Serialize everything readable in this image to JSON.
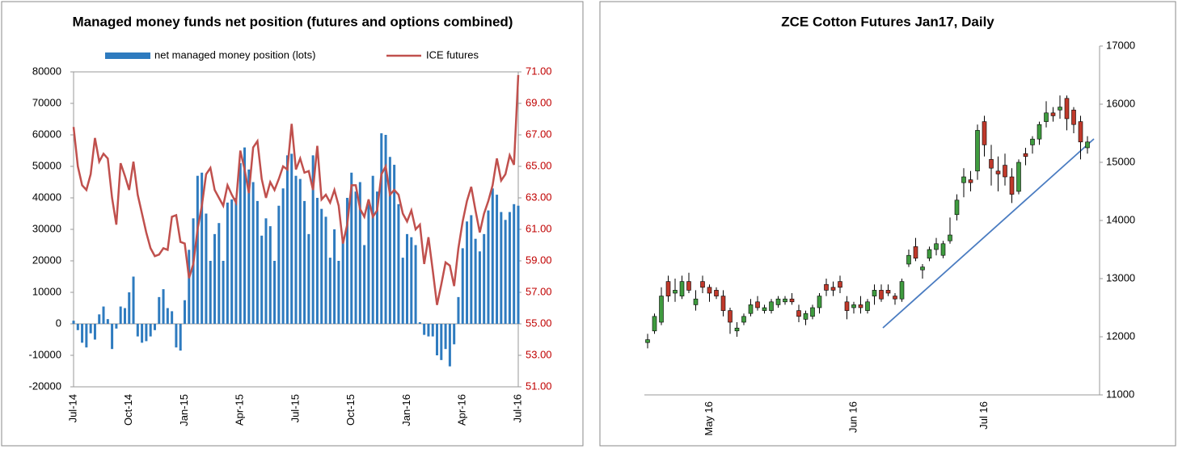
{
  "chart_data": [
    {
      "type": "bar_line",
      "title": "Managed money funds net position (futures and options combined)",
      "categories": [
        "Jul-14",
        null,
        null,
        null,
        null,
        null,
        null,
        null,
        null,
        null,
        null,
        null,
        null,
        "Oct-14",
        null,
        null,
        null,
        null,
        null,
        null,
        null,
        null,
        null,
        null,
        null,
        null,
        "Jan-15",
        null,
        null,
        null,
        null,
        null,
        null,
        null,
        null,
        null,
        null,
        null,
        null,
        "Apr-15",
        null,
        null,
        null,
        null,
        null,
        null,
        null,
        null,
        null,
        null,
        null,
        null,
        "Jul-15",
        null,
        null,
        null,
        null,
        null,
        null,
        null,
        null,
        null,
        null,
        null,
        null,
        "Oct-15",
        null,
        null,
        null,
        null,
        null,
        null,
        null,
        null,
        null,
        null,
        null,
        null,
        "Jan-16",
        null,
        null,
        null,
        null,
        null,
        null,
        null,
        null,
        null,
        null,
        null,
        null,
        "Apr-16",
        null,
        null,
        null,
        null,
        null,
        null,
        null,
        null,
        null,
        null,
        null,
        null,
        "Jul-16"
      ],
      "series": [
        {
          "name": "net managed money position (lots)",
          "type": "bar",
          "color": "#2e7bbf",
          "values": [
            1000,
            -2000,
            -6000,
            -7500,
            -3000,
            -5000,
            3000,
            5500,
            1500,
            -8000,
            -1500,
            5500,
            5000,
            10000,
            15000,
            -4000,
            -6000,
            -5500,
            -4000,
            -2000,
            8500,
            11000,
            5000,
            4000,
            -7500,
            -8500,
            7500,
            23500,
            33500,
            47000,
            48000,
            35000,
            20000,
            28500,
            32000,
            20000,
            38500,
            39500,
            40000,
            51000,
            56000,
            49000,
            45000,
            39000,
            28000,
            33500,
            31000,
            20000,
            37500,
            43000,
            53500,
            54000,
            47000,
            46000,
            39000,
            28500,
            53500,
            40000,
            36500,
            34000,
            21000,
            30000,
            20000,
            27000,
            40000,
            48000,
            42000,
            45000,
            25000,
            38000,
            47000,
            42000,
            60500,
            60000,
            53000,
            50500,
            38000,
            21000,
            28500,
            27500,
            25000,
            500,
            -3500,
            -4000,
            -4000,
            -10000,
            -11500,
            -8000,
            -13500,
            -6500,
            8500,
            24000,
            32500,
            34500,
            27000,
            23000,
            28500,
            36000,
            43000,
            41000,
            35500,
            33000,
            35500,
            38000,
            37500
          ]
        },
        {
          "name": "ICE futures",
          "type": "line",
          "axis": "y2",
          "color": "#c0504d",
          "values": [
            67.5,
            65,
            63.8,
            63.5,
            64.5,
            66.8,
            65.3,
            65.8,
            65.5,
            63,
            61.3,
            65.2,
            64.4,
            63.5,
            65.3,
            63.2,
            62,
            60.8,
            59.8,
            59.3,
            59.4,
            59.8,
            59.7,
            61.8,
            61.9,
            60.2,
            60.1,
            57.9,
            58.8,
            61,
            62.5,
            64.5,
            64.9,
            63.5,
            63,
            62.5,
            63.8,
            63.2,
            62.7,
            66,
            64.8,
            63.3,
            66.2,
            66.6,
            64.2,
            63,
            64,
            63.5,
            64.2,
            65,
            64.8,
            67.7,
            64.8,
            65.5,
            64.6,
            64.7,
            63.5,
            66.3,
            62.9,
            63.2,
            62.7,
            63.5,
            62.5,
            60.1,
            61.3,
            63.8,
            63.8,
            62.3,
            61.8,
            62.9,
            61.8,
            62.2,
            64.5,
            65,
            63.2,
            63.5,
            63.2,
            62,
            61.5,
            62.2,
            61,
            61.3,
            58.8,
            60.5,
            58.4,
            56.2,
            57.5,
            58.9,
            58.7,
            57.4,
            59.8,
            61.5,
            62.8,
            63.7,
            62.2,
            60.8,
            62,
            62.8,
            63.8,
            65.5,
            64.1,
            64.5,
            65.7,
            65.1,
            70.8
          ]
        }
      ],
      "ylim": [
        -20000,
        80000
      ],
      "yticks": [
        -20000,
        -10000,
        0,
        10000,
        20000,
        30000,
        40000,
        50000,
        60000,
        70000,
        80000
      ],
      "y2lim": [
        51,
        71
      ],
      "y2ticks": [
        {
          "value": 51,
          "label": "51.00"
        },
        {
          "value": 53,
          "label": "53.00"
        },
        {
          "value": 55,
          "label": "55.00"
        },
        {
          "value": 57,
          "label": "57.00"
        },
        {
          "value": 59,
          "label": "59.00"
        },
        {
          "value": 61,
          "label": "61.00"
        },
        {
          "value": 63,
          "label": "63.00"
        },
        {
          "value": 65,
          "label": "65.00"
        },
        {
          "value": 67,
          "label": "67.00"
        },
        {
          "value": 69,
          "label": "69.00"
        },
        {
          "value": 71,
          "label": "71.00"
        }
      ],
      "legend": "top"
    },
    {
      "type": "candlestick",
      "title": "ZCE Cotton Futures Jan17, Daily",
      "categories": [
        null,
        null,
        null,
        null,
        null,
        null,
        null,
        null,
        null,
        "May 16",
        null,
        null,
        null,
        null,
        null,
        null,
        null,
        null,
        null,
        null,
        null,
        null,
        null,
        null,
        null,
        null,
        null,
        null,
        null,
        null,
        "Jun 16",
        null,
        null,
        null,
        null,
        null,
        null,
        null,
        null,
        null,
        null,
        null,
        null,
        null,
        null,
        null,
        null,
        null,
        null,
        "Jul 16",
        null,
        null,
        null,
        null,
        null,
        null,
        null,
        null,
        null,
        null,
        null,
        null,
        null,
        null,
        null
      ],
      "open": [
        11900,
        12100,
        12250,
        12950,
        12750,
        12700,
        12950,
        12550,
        12950,
        12850,
        12800,
        12700,
        12450,
        12100,
        12250,
        12400,
        12600,
        12450,
        12450,
        12550,
        12600,
        12650,
        12450,
        12300,
        12350,
        12500,
        12900,
        12850,
        12950,
        12600,
        12500,
        12550,
        12450,
        12700,
        12800,
        12800,
        12700,
        12650,
        13250,
        13550,
        13150,
        13350,
        13500,
        13400,
        13650,
        14100,
        14650,
        14700,
        14850,
        15700,
        15050,
        14850,
        14950,
        14750,
        14500,
        15150,
        15300,
        15400,
        15700,
        15850,
        15900,
        16100,
        15900,
        15700,
        15250
      ],
      "high": [
        12050,
        12400,
        12850,
        13050,
        13000,
        13050,
        13100,
        12800,
        13050,
        12900,
        12850,
        12800,
        12500,
        12250,
        12400,
        12650,
        12700,
        12550,
        12650,
        12700,
        12700,
        12750,
        12550,
        12450,
        12550,
        12750,
        13000,
        12950,
        13050,
        12700,
        12600,
        12700,
        12650,
        12900,
        12900,
        12900,
        12750,
        13000,
        13500,
        13700,
        13250,
        13550,
        13700,
        13650,
        14050,
        14450,
        14900,
        14850,
        15650,
        15800,
        15300,
        15100,
        15150,
        14900,
        15050,
        15250,
        15450,
        15700,
        16050,
        15950,
        16150,
        16150,
        15950,
        15800,
        15450
      ],
      "low": [
        11800,
        12050,
        12200,
        12600,
        12600,
        12650,
        12750,
        12450,
        12750,
        12600,
        12650,
        12350,
        12050,
        12000,
        12200,
        12350,
        12450,
        12400,
        12400,
        12500,
        12550,
        12550,
        12250,
        12200,
        12300,
        12400,
        12700,
        12700,
        12750,
        12300,
        12400,
        12400,
        12400,
        12550,
        12600,
        12700,
        12550,
        12600,
        13200,
        13300,
        13000,
        13300,
        13400,
        13350,
        13600,
        14000,
        14400,
        14500,
        14700,
        15100,
        14600,
        14500,
        14600,
        14300,
        14450,
        14950,
        15150,
        15300,
        15600,
        15700,
        15750,
        15550,
        15500,
        15050,
        15150
      ],
      "close": [
        11950,
        12350,
        12700,
        12700,
        12800,
        12950,
        12800,
        12650,
        12850,
        12750,
        12700,
        12450,
        12250,
        12150,
        12350,
        12550,
        12500,
        12500,
        12600,
        12650,
        12650,
        12600,
        12350,
        12400,
        12500,
        12700,
        12800,
        12800,
        12850,
        12450,
        12550,
        12500,
        12600,
        12800,
        12650,
        12750,
        12650,
        12950,
        13400,
        13350,
        13200,
        13500,
        13600,
        13600,
        13750,
        14350,
        14750,
        14650,
        15550,
        15300,
        14900,
        14800,
        14750,
        14450,
        15000,
        15100,
        15400,
        15650,
        15850,
        15800,
        15950,
        15750,
        15650,
        15350,
        15350
      ],
      "up_color": "#3f9b3f",
      "down_color": "#c0392b",
      "ylim": [
        11000,
        17000
      ],
      "yticks": [
        11000,
        12000,
        13000,
        14000,
        15000,
        16000,
        17000
      ]
    }
  ]
}
